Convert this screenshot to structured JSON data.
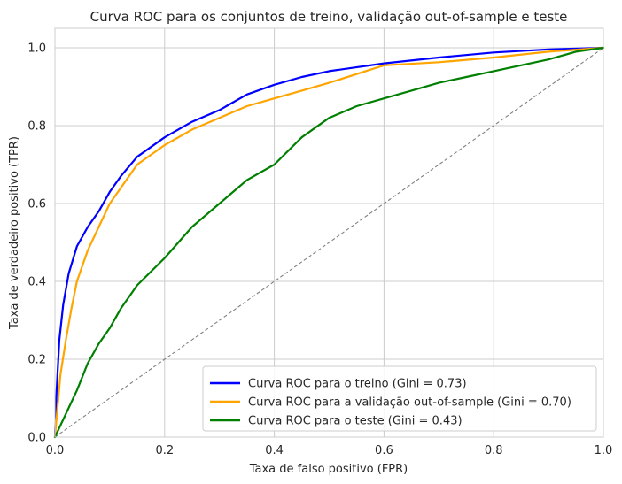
{
  "chart_data": {
    "type": "line",
    "title": "Curva ROC para os conjuntos de treino, validação out-of-sample e teste",
    "xlabel": "Taxa de falso positivo (FPR)",
    "ylabel": "Taxa de verdadeiro positivo (TPR)",
    "xlim": [
      0,
      1
    ],
    "ylim": [
      0,
      1.05
    ],
    "xticks": [
      "0.0",
      "0.2",
      "0.4",
      "0.6",
      "0.8",
      "1.0"
    ],
    "yticks": [
      "0.0",
      "0.2",
      "0.4",
      "0.6",
      "0.8",
      "1.0"
    ],
    "grid": true,
    "legend_position": "lower-right",
    "diagonal": {
      "x": [
        0,
        1
      ],
      "y": [
        0,
        1
      ],
      "color": "#808080",
      "style": "dashed"
    },
    "series": [
      {
        "name": "Curva ROC para o treino (Gini = 0.73)",
        "color": "#0000ff",
        "x": [
          0,
          0.003,
          0.008,
          0.015,
          0.025,
          0.04,
          0.06,
          0.08,
          0.1,
          0.12,
          0.15,
          0.2,
          0.25,
          0.3,
          0.35,
          0.4,
          0.45,
          0.5,
          0.6,
          0.7,
          0.8,
          0.9,
          1.0
        ],
        "y": [
          0,
          0.12,
          0.25,
          0.34,
          0.42,
          0.49,
          0.54,
          0.58,
          0.63,
          0.67,
          0.72,
          0.77,
          0.81,
          0.84,
          0.88,
          0.905,
          0.925,
          0.94,
          0.96,
          0.975,
          0.988,
          0.996,
          1.0
        ]
      },
      {
        "name": "Curva ROC para a validação out-of-sample (Gini = 0.70)",
        "color": "#ffa500",
        "x": [
          0,
          0.005,
          0.01,
          0.02,
          0.03,
          0.04,
          0.06,
          0.08,
          0.1,
          0.12,
          0.15,
          0.2,
          0.25,
          0.3,
          0.35,
          0.4,
          0.45,
          0.5,
          0.6,
          0.7,
          0.8,
          0.9,
          1.0
        ],
        "y": [
          0,
          0.08,
          0.16,
          0.25,
          0.33,
          0.4,
          0.48,
          0.54,
          0.6,
          0.64,
          0.7,
          0.75,
          0.79,
          0.82,
          0.85,
          0.87,
          0.89,
          0.91,
          0.955,
          0.963,
          0.975,
          0.99,
          1.0
        ]
      },
      {
        "name": "Curva ROC para o teste (Gini = 0.43)",
        "color": "#008000",
        "x": [
          0,
          0.01,
          0.02,
          0.04,
          0.06,
          0.08,
          0.1,
          0.12,
          0.15,
          0.2,
          0.25,
          0.3,
          0.35,
          0.4,
          0.45,
          0.5,
          0.55,
          0.6,
          0.65,
          0.7,
          0.75,
          0.8,
          0.85,
          0.9,
          0.95,
          1.0
        ],
        "y": [
          0,
          0.03,
          0.06,
          0.12,
          0.19,
          0.24,
          0.28,
          0.33,
          0.39,
          0.46,
          0.54,
          0.6,
          0.66,
          0.7,
          0.77,
          0.82,
          0.85,
          0.87,
          0.89,
          0.91,
          0.925,
          0.94,
          0.955,
          0.97,
          0.99,
          1.0
        ]
      }
    ]
  }
}
